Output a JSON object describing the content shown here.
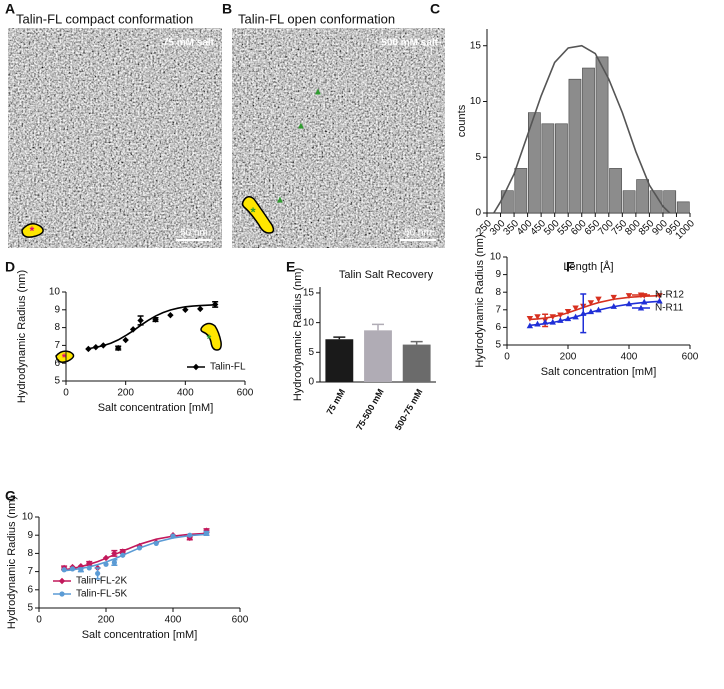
{
  "images": [
    {
      "panel": "A",
      "title": "Talin-FL compact conformation",
      "condition": "75 mM salt",
      "scale_bar": "50 nm"
    },
    {
      "panel": "B",
      "title": "Talin-FL open conformation",
      "condition": "500 mM salt",
      "scale_bar": "50 nm"
    }
  ],
  "chart_data": [
    {
      "type": "histogram",
      "panel": "C",
      "xlabel": "Length [Å]",
      "ylabel": "counts",
      "bins": [
        250,
        300,
        350,
        400,
        450,
        500,
        550,
        600,
        650,
        700,
        750,
        800,
        850,
        900,
        950,
        1000
      ],
      "values": [
        0,
        2,
        4,
        9,
        8,
        8,
        12,
        13,
        14,
        4,
        2,
        3,
        2,
        2,
        1
      ],
      "color": "#8c8c8c",
      "fit": {
        "color": "#555555",
        "x": [
          275,
          300,
          350,
          400,
          450,
          500,
          550,
          600,
          650,
          700,
          750,
          800,
          850,
          900,
          925
        ],
        "values": [
          0,
          1,
          3.5,
          7,
          10.5,
          13.5,
          14.8,
          15,
          14.3,
          12,
          9,
          5.5,
          2.5,
          0.6,
          0
        ]
      },
      "xlim": [
        250,
        1000
      ],
      "ylim": [
        0,
        16.5
      ],
      "xticks": [
        250,
        300,
        350,
        400,
        450,
        500,
        550,
        600,
        650,
        700,
        750,
        800,
        850,
        900,
        950,
        1000
      ],
      "yticks": [
        0,
        5,
        10,
        15
      ]
    },
    {
      "type": "line",
      "panel": "D",
      "xlabel": "Salt concentration [mM]",
      "ylabel": "Hydrodynamic Radius (nm)",
      "legend": "lower right",
      "series": [
        {
          "name": "Talin-FL",
          "color": "#000000",
          "marker": "diamond",
          "x": [
            75,
            100,
            125,
            175,
            200,
            225,
            250,
            300,
            350,
            400,
            450,
            500
          ],
          "values": [
            6.8,
            6.9,
            7.0,
            6.85,
            7.3,
            7.9,
            8.4,
            8.45,
            8.7,
            9.0,
            9.05,
            9.3
          ],
          "errors": [
            null,
            null,
            null,
            0.1,
            null,
            null,
            0.25,
            0.1,
            null,
            null,
            null,
            0.15
          ],
          "fit_x": [
            75,
            100,
            125,
            150,
            175,
            200,
            225,
            250,
            275,
            300,
            325,
            350,
            375,
            400,
            425,
            450,
            475,
            500
          ],
          "fit": [
            6.82,
            6.89,
            6.99,
            7.12,
            7.31,
            7.55,
            7.82,
            8.12,
            8.4,
            8.65,
            8.84,
            8.99,
            9.09,
            9.17,
            9.21,
            9.24,
            9.26,
            9.28
          ]
        }
      ],
      "xlim": [
        0,
        600
      ],
      "ylim": [
        5,
        10
      ],
      "xticks": [
        0,
        200,
        400,
        600
      ],
      "yticks": [
        5,
        6,
        7,
        8,
        9,
        10
      ]
    },
    {
      "type": "bar",
      "panel": "E",
      "title": "Talin Salt Recovery",
      "ylabel": "Hydrodynamic Radius (nm)",
      "categories": [
        "75 mM",
        "75-500 mM",
        "500-75 mM"
      ],
      "values": [
        7.2,
        8.7,
        6.3
      ],
      "errors": [
        0.35,
        1.0,
        0.5
      ],
      "colors": [
        "#1a1a1a",
        "#b0acb5",
        "#6b6b6b"
      ],
      "ylim": [
        0,
        16
      ],
      "yticks": [
        0,
        5,
        10,
        15
      ]
    },
    {
      "type": "line",
      "panel": "F",
      "xlabel": "Salt concentration [mM]",
      "ylabel": "Hydrodynamic Radius (nm)",
      "legend": "center right",
      "series": [
        {
          "name": "N-R12",
          "color": "#d7301f",
          "marker": "triangle-down",
          "x": [
            75,
            100,
            125,
            150,
            175,
            200,
            225,
            250,
            275,
            300,
            350,
            400,
            450,
            500
          ],
          "values": [
            6.5,
            6.6,
            6.4,
            6.6,
            6.7,
            6.9,
            7.1,
            7.2,
            7.4,
            7.6,
            7.7,
            7.8,
            7.8,
            7.8
          ],
          "errors": [
            null,
            null,
            0.35,
            null,
            null,
            null,
            null,
            null,
            null,
            null,
            null,
            null,
            null,
            null
          ],
          "fit_x": [
            75,
            100,
            125,
            150,
            175,
            200,
            225,
            250,
            275,
            300,
            350,
            400,
            450,
            500
          ],
          "fit": [
            6.45,
            6.48,
            6.53,
            6.6,
            6.7,
            6.83,
            6.98,
            7.13,
            7.28,
            7.41,
            7.6,
            7.71,
            7.77,
            7.8
          ]
        },
        {
          "name": "N-R11",
          "color": "#1f2fd7",
          "marker": "triangle-up",
          "x": [
            75,
            100,
            125,
            150,
            175,
            200,
            225,
            250,
            275,
            300,
            350,
            400,
            450,
            500
          ],
          "values": [
            6.1,
            6.2,
            6.3,
            6.3,
            6.4,
            6.5,
            6.6,
            6.8,
            6.9,
            7.0,
            7.2,
            7.35,
            7.45,
            7.5
          ],
          "errors": [
            null,
            null,
            null,
            null,
            null,
            null,
            null,
            1.1,
            null,
            null,
            null,
            null,
            null,
            null
          ],
          "fit_x": [
            75,
            100,
            125,
            150,
            175,
            200,
            225,
            250,
            275,
            300,
            350,
            400,
            450,
            500
          ],
          "fit": [
            6.12,
            6.16,
            6.21,
            6.28,
            6.37,
            6.48,
            6.6,
            6.73,
            6.86,
            6.98,
            7.18,
            7.32,
            7.42,
            7.48
          ]
        }
      ],
      "xlim": [
        0,
        600
      ],
      "ylim": [
        5,
        10
      ],
      "xticks": [
        0,
        200,
        400,
        600
      ],
      "yticks": [
        5,
        6,
        7,
        8,
        9,
        10
      ]
    },
    {
      "type": "line",
      "panel": "G",
      "xlabel": "Salt concentration [mM]",
      "ylabel": "Hydrodynamic Radius (nm)",
      "legend": "lower left",
      "series": [
        {
          "name": "Talin-FL-2K",
          "color": "#c2185b",
          "marker": "diamond",
          "x": [
            75,
            100,
            125,
            150,
            175,
            200,
            225,
            250,
            300,
            350,
            400,
            450,
            500
          ],
          "values": [
            7.2,
            7.25,
            7.3,
            7.45,
            7.2,
            7.75,
            8.0,
            8.1,
            8.4,
            8.6,
            9.0,
            8.85,
            9.25
          ],
          "errors": [
            0.1,
            null,
            null,
            0.1,
            null,
            null,
            0.15,
            0.1,
            null,
            null,
            null,
            0.1,
            0.1
          ],
          "fit_x": [
            75,
            100,
            125,
            150,
            175,
            200,
            225,
            250,
            300,
            350,
            400,
            450,
            500
          ],
          "fit": [
            7.1,
            7.17,
            7.27,
            7.4,
            7.55,
            7.73,
            7.93,
            8.13,
            8.5,
            8.78,
            8.95,
            9.05,
            9.1
          ]
        },
        {
          "name": "Talin-FL-5K",
          "color": "#5b9bd5",
          "marker": "circle",
          "x": [
            75,
            100,
            125,
            150,
            175,
            200,
            225,
            250,
            300,
            350,
            400,
            450,
            500
          ],
          "values": [
            7.1,
            7.15,
            7.1,
            7.2,
            6.9,
            7.4,
            7.5,
            7.9,
            8.3,
            8.55,
            8.95,
            9.0,
            9.1
          ],
          "errors": [
            null,
            null,
            0.1,
            null,
            0.3,
            null,
            0.15,
            null,
            null,
            null,
            null,
            null,
            0.1
          ],
          "fit_x": [
            75,
            100,
            125,
            150,
            175,
            200,
            225,
            250,
            300,
            350,
            400,
            450,
            500
          ],
          "fit": [
            7.05,
            7.1,
            7.17,
            7.26,
            7.38,
            7.53,
            7.7,
            7.9,
            8.3,
            8.62,
            8.85,
            8.98,
            9.05
          ]
        }
      ],
      "xlim": [
        0,
        600
      ],
      "ylim": [
        5,
        10
      ],
      "xticks": [
        0,
        200,
        400,
        600
      ],
      "yticks": [
        5,
        6,
        7,
        8,
        9,
        10
      ]
    }
  ]
}
